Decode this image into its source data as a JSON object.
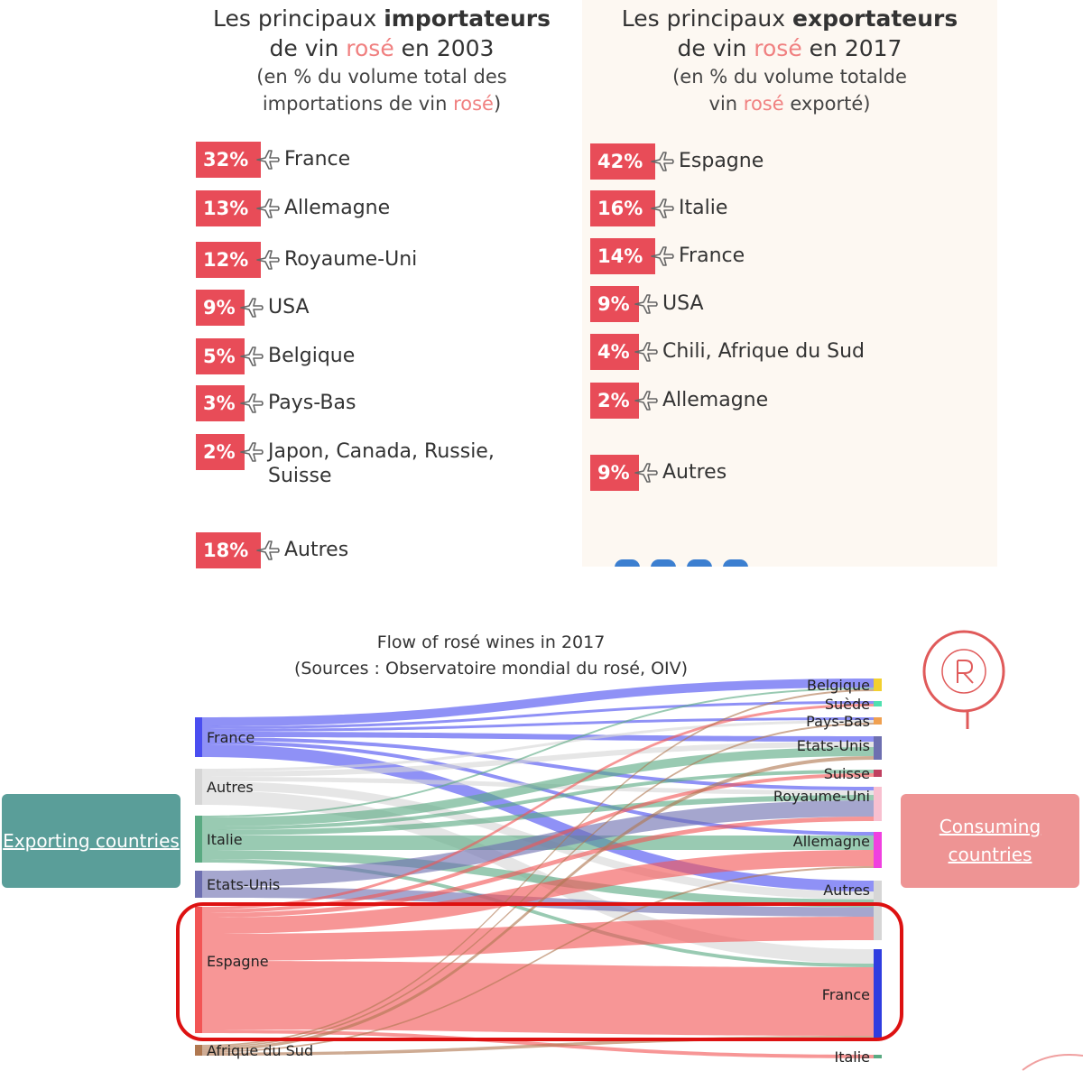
{
  "importers": {
    "title_pre": "Les principaux ",
    "title_bold": "importateurs",
    "title_line2_pre": "de vin ",
    "title_line2_rose": "rosé",
    "title_line2_post": " en 2003",
    "sub_line1": "(en % du volume total des",
    "sub_line2_pre": "importations de vin ",
    "sub_line2_rose": "rosé",
    "sub_line2_post": ")",
    "items": [
      {
        "pct": "32%",
        "country": "France"
      },
      {
        "pct": "13%",
        "country": "Allemagne"
      },
      {
        "pct": "12%",
        "country": "Royaume-Uni"
      },
      {
        "pct": "9%",
        "country": "USA"
      },
      {
        "pct": "5%",
        "country": "Belgique"
      },
      {
        "pct": "3%",
        "country": "Pays-Bas"
      },
      {
        "pct": "2%",
        "country": "Japon, Canada, Russie,",
        "country2": "Suisse"
      },
      {
        "pct": "18%",
        "country": "Autres"
      }
    ]
  },
  "exporters": {
    "title_pre": "Les principaux ",
    "title_bold": "exportateurs",
    "title_line2_pre": "de vin ",
    "title_line2_rose": "rosé",
    "title_line2_post": " en 2017",
    "sub_line1": "(en % du volume totalde",
    "sub_line2_pre": "vin ",
    "sub_line2_rose": "rosé",
    "sub_line2_post": " exporté)",
    "items": [
      {
        "pct": "42%",
        "country": "Espagne"
      },
      {
        "pct": "16%",
        "country": "Italie"
      },
      {
        "pct": "14%",
        "country": "France"
      },
      {
        "pct": "9%",
        "country": "USA"
      },
      {
        "pct": "4%",
        "country": "Chili, Afrique du Sud"
      },
      {
        "pct": "2%",
        "country": "Allemagne"
      },
      {
        "pct": "9%",
        "country": "Autres"
      }
    ]
  },
  "colors": {
    "badge": "#e84c58",
    "rose_text": "#f08080",
    "left_box": "#5a9e99",
    "right_box": "#ee9494",
    "highlight": "#dd1111"
  },
  "chart_data": {
    "type": "sankey",
    "title": "Flow of rosé wines in 2017",
    "subtitle": "(Sources : Observatoire mondial du rosé, OIV)",
    "left_label": "Exporting countries",
    "right_label": "Consuming countries",
    "sources": [
      {
        "name": "France",
        "color": "#4a4ef0",
        "size": 44
      },
      {
        "name": "Autres",
        "color": "#d6d6d6",
        "size": 40
      },
      {
        "name": "Italie",
        "color": "#5aaa82",
        "size": 52
      },
      {
        "name": "Etats-Unis",
        "color": "#6d6fb0",
        "size": 30
      },
      {
        "name": "Espagne",
        "color": "#f25555",
        "size": 140
      },
      {
        "name": "Afrique du Sud",
        "color": "#b07850",
        "size": 12
      }
    ],
    "targets": [
      {
        "name": "Belgique",
        "color": "#f2d030",
        "size": 14
      },
      {
        "name": "Suède",
        "color": "#50e0b0",
        "size": 6
      },
      {
        "name": "Pays-Bas",
        "color": "#f0a050",
        "size": 8
      },
      {
        "name": "Etats-Unis",
        "color": "#6d6fb0",
        "size": 26
      },
      {
        "name": "Suisse",
        "color": "#c04060",
        "size": 8
      },
      {
        "name": "Royaume-Uni",
        "color": "#f8c0d0",
        "size": 38
      },
      {
        "name": "Allemagne",
        "color": "#f040e0",
        "size": 40
      },
      {
        "name": "Autres",
        "color": "#d6d6d6",
        "size": 66
      },
      {
        "name": "France",
        "color": "#2f3de0",
        "size": 100
      },
      {
        "name": "Italie",
        "color": "#5aaa82",
        "size": 4
      }
    ],
    "flows": [
      {
        "from": "France",
        "to": "Belgique",
        "value": 10
      },
      {
        "from": "France",
        "to": "Suède",
        "value": 3
      },
      {
        "from": "France",
        "to": "Pays-Bas",
        "value": 3
      },
      {
        "from": "France",
        "to": "Etats-Unis",
        "value": 6
      },
      {
        "from": "France",
        "to": "Royaume-Uni",
        "value": 4
      },
      {
        "from": "France",
        "to": "Allemagne",
        "value": 4
      },
      {
        "from": "France",
        "to": "Autres",
        "value": 14
      },
      {
        "from": "Autres",
        "to": "Pays-Bas",
        "value": 3
      },
      {
        "from": "Autres",
        "to": "Etats-Unis",
        "value": 6
      },
      {
        "from": "Autres",
        "to": "Royaume-Uni",
        "value": 5
      },
      {
        "from": "Autres",
        "to": "Autres",
        "value": 10
      },
      {
        "from": "Autres",
        "to": "France",
        "value": 16
      },
      {
        "from": "Italie",
        "to": "Belgique",
        "value": 2
      },
      {
        "from": "Italie",
        "to": "Etats-Unis",
        "value": 10
      },
      {
        "from": "Italie",
        "to": "Suisse",
        "value": 4
      },
      {
        "from": "Italie",
        "to": "Royaume-Uni",
        "value": 6
      },
      {
        "from": "Italie",
        "to": "Allemagne",
        "value": 16
      },
      {
        "from": "Italie",
        "to": "Autres",
        "value": 10
      },
      {
        "from": "Italie",
        "to": "France",
        "value": 4
      },
      {
        "from": "Etats-Unis",
        "to": "Royaume-Uni",
        "value": 18
      },
      {
        "from": "Etats-Unis",
        "to": "Autres",
        "value": 12
      },
      {
        "from": "Espagne",
        "to": "Suède",
        "value": 3
      },
      {
        "from": "Espagne",
        "to": "Suisse",
        "value": 4
      },
      {
        "from": "Espagne",
        "to": "Royaume-Uni",
        "value": 5
      },
      {
        "from": "Espagne",
        "to": "Allemagne",
        "value": 18
      },
      {
        "from": "Espagne",
        "to": "Autres",
        "value": 30
      },
      {
        "from": "Espagne",
        "to": "France",
        "value": 76
      },
      {
        "from": "Espagne",
        "to": "Italie",
        "value": 4
      },
      {
        "from": "Afrique du Sud",
        "to": "Belgique",
        "value": 2
      },
      {
        "from": "Afrique du Sud",
        "to": "Pays-Bas",
        "value": 2
      },
      {
        "from": "Afrique du Sud",
        "to": "Etats-Unis",
        "value": 4
      },
      {
        "from": "Afrique du Sud",
        "to": "Allemagne",
        "value": 2
      },
      {
        "from": "Afrique du Sud",
        "to": "France",
        "value": 4
      }
    ],
    "highlight": [
      "Espagne",
      "France"
    ]
  }
}
